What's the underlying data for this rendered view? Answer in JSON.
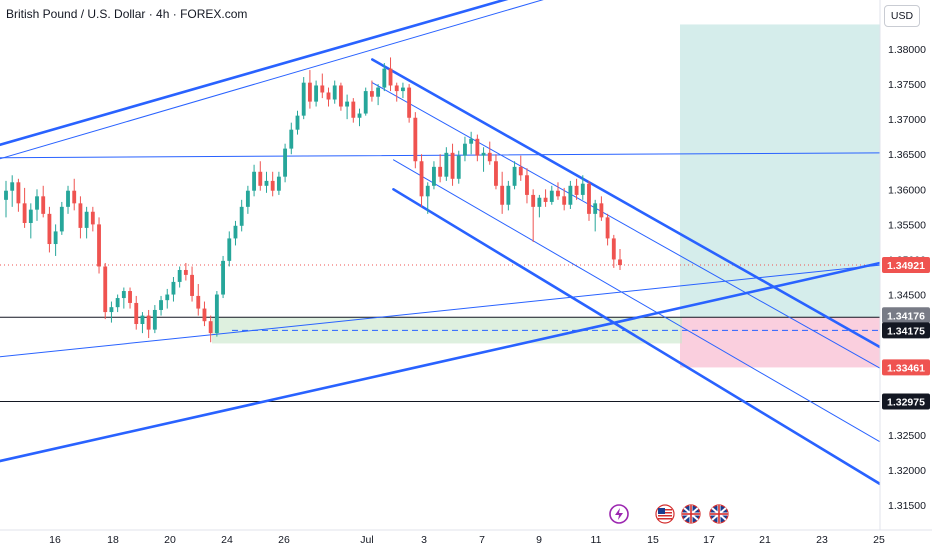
{
  "header": {
    "title": "British Pound / U.S. Dollar · 4h · FOREX.com"
  },
  "price_axis": {
    "currency_label": "USD"
  },
  "colors": {
    "bullish": "#26a69a",
    "bearish": "#ef5350",
    "trendline": "#2962ff",
    "target_zone": "#b2dfdb",
    "stop_zone": "#f8bbd0",
    "demand_zone": "#c8e6c9"
  },
  "events": [
    {
      "icon": "lightning-icon",
      "date": "Jul 12"
    },
    {
      "icon": "us-flag-icon",
      "date": "Jul 14"
    },
    {
      "icon": "uk-flag-icon",
      "date": "Jul 15"
    },
    {
      "icon": "uk-flag-icon",
      "date": "Jul 16"
    }
  ],
  "chart_data": {
    "type": "candlestick",
    "symbol": "British Pound / U.S. Dollar",
    "timeframe": "4h",
    "source": "FOREX.com",
    "x_ticks": [
      "16",
      "18",
      "20",
      "24",
      "26",
      "Jul",
      "3",
      "7",
      "9",
      "11",
      "15",
      "17",
      "21",
      "23",
      "25"
    ],
    "y_ticks": [
      "1.38000",
      "1.37500",
      "1.37000",
      "1.36500",
      "1.36000",
      "1.35500",
      "1.35000",
      "1.34500",
      "1.34000",
      "1.33500",
      "1.33000",
      "1.32500",
      "1.32000",
      "1.31500"
    ],
    "ylim": [
      1.3125,
      1.385
    ],
    "grid": false,
    "price_labels": [
      {
        "text": "1.34921",
        "value": 1.34921,
        "style": "current"
      },
      {
        "text": "1.34176",
        "value": 1.34176,
        "style": "gray"
      },
      {
        "text": "1.34175",
        "value": 1.34175,
        "style": "dark"
      },
      {
        "text": "1.33461",
        "value": 1.33461,
        "style": "stop"
      },
      {
        "text": "1.32975",
        "value": 1.32975,
        "style": "dark"
      }
    ],
    "horizontal_lines": [
      1.34176,
      1.32975
    ],
    "current_price": 1.34921,
    "long_position": {
      "entry": 1.34175,
      "stop": 1.33461,
      "target": 1.3835
    },
    "demand_zone": {
      "top": 1.34176,
      "bottom": 1.33803
    },
    "candles": [
      [
        1.3585,
        1.3612,
        1.356,
        1.3598
      ],
      [
        1.3598,
        1.362,
        1.3575,
        1.361
      ],
      [
        1.361,
        1.3615,
        1.3568,
        1.358
      ],
      [
        1.358,
        1.3602,
        1.3545,
        1.3552
      ],
      [
        1.3552,
        1.358,
        1.353,
        1.3571
      ],
      [
        1.3571,
        1.36,
        1.3555,
        1.359
      ],
      [
        1.359,
        1.3605,
        1.356,
        1.3565
      ],
      [
        1.3565,
        1.3575,
        1.351,
        1.3522
      ],
      [
        1.3522,
        1.355,
        1.3505,
        1.354
      ],
      [
        1.354,
        1.3582,
        1.3535,
        1.3575
      ],
      [
        1.3575,
        1.3605,
        1.3565,
        1.3598
      ],
      [
        1.3598,
        1.3615,
        1.357,
        1.358
      ],
      [
        1.358,
        1.359,
        1.353,
        1.3545
      ],
      [
        1.3545,
        1.3575,
        1.353,
        1.3568
      ],
      [
        1.3568,
        1.3575,
        1.354,
        1.355
      ],
      [
        1.355,
        1.356,
        1.348,
        1.349
      ],
      [
        1.349,
        1.3495,
        1.3415,
        1.3425
      ],
      [
        1.3425,
        1.344,
        1.341,
        1.3432
      ],
      [
        1.3432,
        1.345,
        1.3425,
        1.3445
      ],
      [
        1.3445,
        1.346,
        1.343,
        1.3455
      ],
      [
        1.3455,
        1.346,
        1.343,
        1.3438
      ],
      [
        1.3438,
        1.3448,
        1.34,
        1.3408
      ],
      [
        1.3408,
        1.3425,
        1.3395,
        1.342
      ],
      [
        1.342,
        1.3428,
        1.3388,
        1.34
      ],
      [
        1.34,
        1.3435,
        1.3395,
        1.3428
      ],
      [
        1.3428,
        1.3448,
        1.342,
        1.3442
      ],
      [
        1.3442,
        1.3458,
        1.343,
        1.345
      ],
      [
        1.345,
        1.3475,
        1.344,
        1.3468
      ],
      [
        1.3468,
        1.349,
        1.346,
        1.3485
      ],
      [
        1.3485,
        1.3495,
        1.347,
        1.3478
      ],
      [
        1.3478,
        1.349,
        1.344,
        1.3448
      ],
      [
        1.3448,
        1.3465,
        1.342,
        1.343
      ],
      [
        1.343,
        1.344,
        1.3405,
        1.3412
      ],
      [
        1.3412,
        1.342,
        1.3382,
        1.3395
      ],
      [
        1.3395,
        1.3455,
        1.339,
        1.345
      ],
      [
        1.345,
        1.3505,
        1.3445,
        1.3498
      ],
      [
        1.3498,
        1.354,
        1.349,
        1.353
      ],
      [
        1.353,
        1.3555,
        1.352,
        1.3548
      ],
      [
        1.3548,
        1.3585,
        1.354,
        1.3575
      ],
      [
        1.3575,
        1.3605,
        1.3565,
        1.3598
      ],
      [
        1.3598,
        1.3635,
        1.359,
        1.3625
      ],
      [
        1.3625,
        1.364,
        1.3598,
        1.3605
      ],
      [
        1.3605,
        1.3625,
        1.3595,
        1.3612
      ],
      [
        1.3612,
        1.3625,
        1.359,
        1.3598
      ],
      [
        1.3598,
        1.3625,
        1.3592,
        1.3618
      ],
      [
        1.3618,
        1.3665,
        1.361,
        1.3658
      ],
      [
        1.3658,
        1.3695,
        1.365,
        1.3685
      ],
      [
        1.3685,
        1.3712,
        1.3678,
        1.3705
      ],
      [
        1.3705,
        1.376,
        1.37,
        1.3752
      ],
      [
        1.3752,
        1.377,
        1.3715,
        1.3725
      ],
      [
        1.3725,
        1.3755,
        1.3718,
        1.3748
      ],
      [
        1.3748,
        1.3765,
        1.373,
        1.3738
      ],
      [
        1.3738,
        1.3745,
        1.3718,
        1.3728
      ],
      [
        1.3728,
        1.3755,
        1.3722,
        1.3748
      ],
      [
        1.3748,
        1.3752,
        1.3712,
        1.3718
      ],
      [
        1.3718,
        1.3735,
        1.37,
        1.3725
      ],
      [
        1.3725,
        1.373,
        1.3695,
        1.3702
      ],
      [
        1.3702,
        1.3715,
        1.369,
        1.3708
      ],
      [
        1.3708,
        1.3745,
        1.3705,
        1.374
      ],
      [
        1.374,
        1.3755,
        1.3725,
        1.3732
      ],
      [
        1.3732,
        1.375,
        1.372,
        1.3745
      ],
      [
        1.3745,
        1.378,
        1.374,
        1.3772
      ],
      [
        1.3772,
        1.3788,
        1.374,
        1.3748
      ],
      [
        1.3748,
        1.3752,
        1.3725,
        1.374
      ],
      [
        1.374,
        1.3752,
        1.373,
        1.3745
      ],
      [
        1.3745,
        1.375,
        1.3695,
        1.3702
      ],
      [
        1.3702,
        1.371,
        1.363,
        1.364
      ],
      [
        1.364,
        1.365,
        1.3575,
        1.359
      ],
      [
        1.359,
        1.361,
        1.3565,
        1.3605
      ],
      [
        1.3605,
        1.364,
        1.36,
        1.3632
      ],
      [
        1.3632,
        1.365,
        1.361,
        1.3618
      ],
      [
        1.3618,
        1.366,
        1.3612,
        1.3652
      ],
      [
        1.3652,
        1.3665,
        1.3605,
        1.3615
      ],
      [
        1.3615,
        1.3655,
        1.3608,
        1.3648
      ],
      [
        1.3648,
        1.3675,
        1.364,
        1.3665
      ],
      [
        1.3665,
        1.3682,
        1.365,
        1.3672
      ],
      [
        1.3672,
        1.3678,
        1.364,
        1.3648
      ],
      [
        1.3648,
        1.366,
        1.3625,
        1.3652
      ],
      [
        1.3652,
        1.3668,
        1.3635,
        1.364
      ],
      [
        1.364,
        1.365,
        1.36,
        1.3605
      ],
      [
        1.3605,
        1.3625,
        1.3565,
        1.3578
      ],
      [
        1.3578,
        1.3612,
        1.357,
        1.3605
      ],
      [
        1.3605,
        1.364,
        1.36,
        1.3632
      ],
      [
        1.3632,
        1.3648,
        1.3612,
        1.362
      ],
      [
        1.362,
        1.363,
        1.358,
        1.3592
      ],
      [
        1.3592,
        1.36,
        1.3525,
        1.3575
      ],
      [
        1.3575,
        1.3592,
        1.356,
        1.3588
      ],
      [
        1.3588,
        1.36,
        1.3575,
        1.3582
      ],
      [
        1.3582,
        1.3605,
        1.3578,
        1.3598
      ],
      [
        1.3598,
        1.361,
        1.3585,
        1.359
      ],
      [
        1.359,
        1.3602,
        1.357,
        1.3578
      ],
      [
        1.3578,
        1.3612,
        1.3572,
        1.3605
      ],
      [
        1.3605,
        1.3615,
        1.3585,
        1.3592
      ],
      [
        1.3592,
        1.362,
        1.3585,
        1.3608
      ],
      [
        1.3608,
        1.3612,
        1.3555,
        1.3565
      ],
      [
        1.3565,
        1.3585,
        1.354,
        1.358
      ],
      [
        1.358,
        1.359,
        1.3555,
        1.356
      ],
      [
        1.356,
        1.3565,
        1.352,
        1.353
      ],
      [
        1.353,
        1.3535,
        1.3488,
        1.35
      ],
      [
        1.35,
        1.3515,
        1.3485,
        1.3492
      ]
    ],
    "trendlines": [
      {
        "name": "upper-channel-top",
        "from": [
          "Jun 13",
          1.366
        ],
        "to": [
          "Jul 13",
          1.392
        ],
        "width": "thick"
      },
      {
        "name": "upper-channel-mid",
        "from": [
          "Jun 13",
          1.364
        ],
        "to": [
          "Jul 13",
          1.3905
        ],
        "width": "thin"
      },
      {
        "name": "ascending-channel-upper",
        "from": [
          "Jun 13",
          1.3645
        ],
        "to": [
          "Jul 25",
          1.3652
        ],
        "width": "thin"
      },
      {
        "name": "ascending-channel-lower",
        "from": [
          "Jun 13",
          1.336
        ],
        "to": [
          "Jul 25",
          1.3492
        ],
        "width": "thin"
      },
      {
        "name": "ascending-support",
        "from": [
          "Jun 13",
          1.321
        ],
        "to": [
          "Jul 25",
          1.3495
        ],
        "width": "thick"
      },
      {
        "name": "descending-channel-top",
        "from": [
          "Jul 1",
          1.3785
        ],
        "to": [
          "Jul 25",
          1.3375
        ],
        "width": "thick"
      },
      {
        "name": "descending-channel-inner-1",
        "from": [
          "Jul 1",
          1.3752
        ],
        "to": [
          "Jul 25",
          1.3345
        ],
        "width": "thin"
      },
      {
        "name": "descending-channel-inner-2",
        "from": [
          "Jul 2",
          1.3642
        ],
        "to": [
          "Jul 25",
          1.324
        ],
        "width": "thin"
      },
      {
        "name": "descending-channel-bottom",
        "from": [
          "Jul 2",
          1.36
        ],
        "to": [
          "Jul 25",
          1.318
        ],
        "width": "thick"
      }
    ]
  }
}
